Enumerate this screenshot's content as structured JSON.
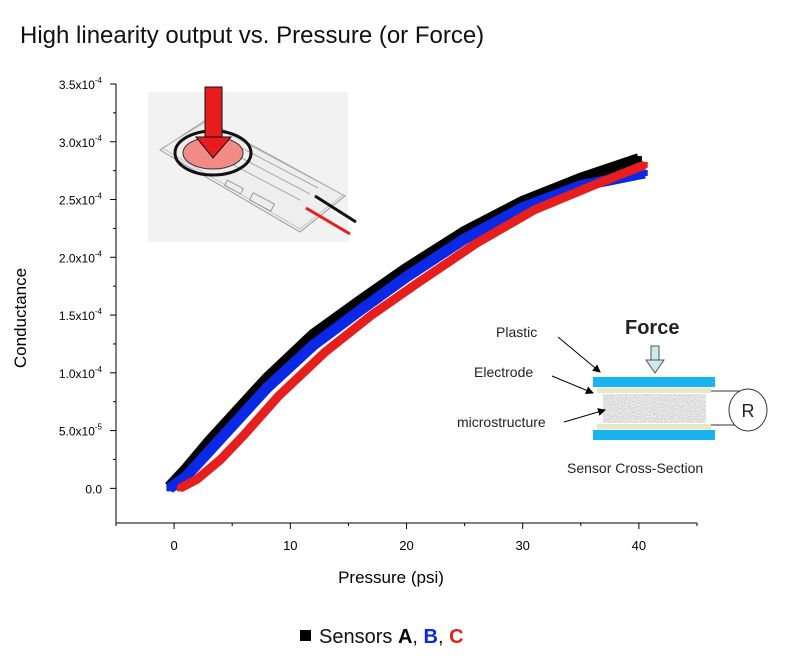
{
  "chart_data": {
    "type": "scatter",
    "title": "High linearity output vs. Pressure (or Force)",
    "xlabel": "Pressure (psi)",
    "ylabel": "Conductance",
    "xlim": [
      -5,
      45
    ],
    "ylim": [
      -3e-05,
      0.00035
    ],
    "x_ticks": [
      0,
      10,
      20,
      30,
      40
    ],
    "y_ticks": [
      {
        "value": 0.00035,
        "mant": "3.5x10",
        "exp": "-4"
      },
      {
        "value": 0.0003,
        "mant": "3.0x10",
        "exp": "-4"
      },
      {
        "value": 0.00025,
        "mant": "2.5x10",
        "exp": "-4"
      },
      {
        "value": 0.0002,
        "mant": "2.0x10",
        "exp": "-4"
      },
      {
        "value": 0.00015,
        "mant": "1.5x10",
        "exp": "-4"
      },
      {
        "value": 0.0001,
        "mant": "1.0x10",
        "exp": "-4"
      },
      {
        "value": 5e-05,
        "mant": "5.0x10",
        "exp": "-5"
      },
      {
        "value": 0.0,
        "mant": "0.0",
        "exp": ""
      }
    ],
    "series": [
      {
        "color": "#000000",
        "x": [
          -0.4,
          1,
          3,
          5,
          8,
          12,
          16,
          20,
          25,
          30,
          35,
          40
        ],
        "y": [
          1e-06,
          1.6e-05,
          4e-05,
          6.2e-05,
          9.5e-05,
          0.000133,
          0.000162,
          0.00019,
          0.000222,
          0.000248,
          0.000268,
          0.000285
        ]
      },
      {
        "color": "#0a28e6",
        "x": [
          -0.4,
          1,
          3,
          5,
          8,
          12,
          16,
          20,
          25,
          30,
          35,
          40.5
        ],
        "y": [
          0.0,
          1e-05,
          3.2e-05,
          5.4e-05,
          8.7e-05,
          0.000124,
          0.000154,
          0.000183,
          0.000216,
          0.000243,
          0.000262,
          0.000273
        ]
      },
      {
        "color": "#e61e1e",
        "x": [
          0.5,
          2,
          4,
          6,
          9,
          13,
          17,
          21,
          26,
          31,
          36,
          40.5
        ],
        "y": [
          0.0,
          8e-06,
          2.5e-05,
          4.6e-05,
          8e-05,
          0.000118,
          0.00015,
          0.000178,
          0.000212,
          0.000241,
          0.000262,
          0.00028
        ]
      }
    ],
    "legend": {
      "prefix": "Sensors ",
      "a": "A",
      "b": "B",
      "c": "C",
      "sep": ", ",
      "colors": {
        "a": "#000000",
        "b": "#0a28e6",
        "c": "#e61e1e"
      }
    },
    "inset_diagram": {
      "force_label": "Force",
      "plastic_label": "Plastic",
      "electrode_label": "Electrode",
      "microstructure_label": "microstructure",
      "resistor_label": "R",
      "caption": "Sensor Cross-Section",
      "layer_color": "#19b4f0",
      "electrode_color": "#e8e8c8"
    }
  }
}
